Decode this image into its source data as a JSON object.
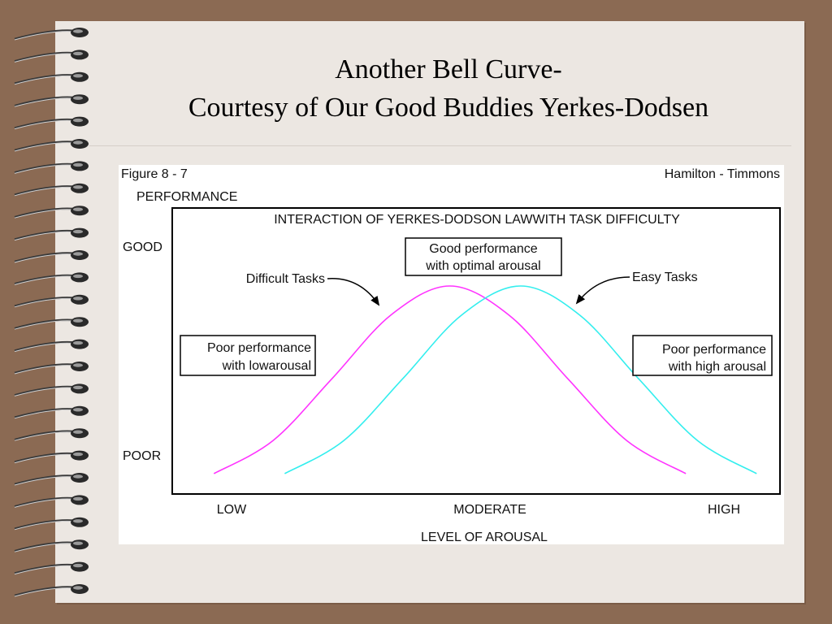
{
  "slide": {
    "title_line_1": "Another Bell Curve-",
    "title_line_2": "Courtesy of Our Good Buddies Yerkes-Dodsen"
  },
  "figure": {
    "figure_number": "Figure 8 - 7",
    "credit": "Hamilton - Timmons",
    "boxes": {
      "low": [
        "Poor performance",
        "with lowarousal"
      ],
      "optimal": [
        "Good performance",
        "with optimal arousal"
      ],
      "high": [
        "Poor performance",
        "with high arousal"
      ]
    },
    "arrow_labels": {
      "difficult": "Difficult Tasks",
      "easy": "Easy Tasks"
    }
  },
  "chart_data": {
    "type": "line",
    "title": "INTERACTION OF YERKES-DODSON LAWWITH TASK DIFFICULTY",
    "xlabel": "LEVEL OF AROUSAL",
    "ylabel": "PERFORMANCE",
    "x_tick_labels": [
      "LOW",
      "MODERATE",
      "HIGH"
    ],
    "y_tick_labels": [
      "POOR",
      "GOOD"
    ],
    "xlim": [
      0,
      100
    ],
    "ylim": [
      0,
      100
    ],
    "grid": false,
    "legend": "none",
    "series": [
      {
        "name": "Difficult Tasks",
        "color": "#ff33ff",
        "x": [
          5,
          15,
          25,
          35,
          45,
          55,
          65,
          75,
          85
        ],
        "y": [
          3,
          20,
          52,
          85,
          100,
          85,
          52,
          20,
          3
        ]
      },
      {
        "name": "Easy Tasks",
        "color": "#33eeee",
        "x": [
          17,
          27,
          37,
          47,
          57,
          67,
          77,
          87,
          97
        ],
        "y": [
          3,
          20,
          52,
          85,
          100,
          85,
          52,
          20,
          3
        ]
      }
    ]
  }
}
